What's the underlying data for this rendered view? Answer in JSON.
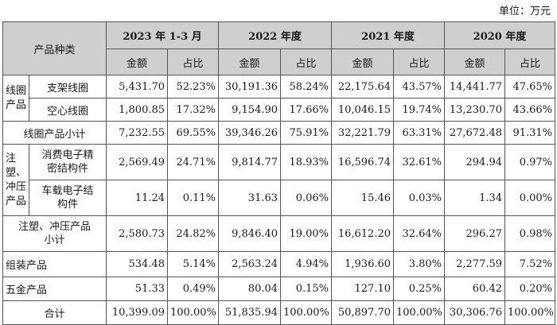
{
  "unit": "单位：万元",
  "header": {
    "category": "产品种类",
    "periods": [
      "2023 年 1-3 月",
      "2022 年度",
      "2021 年度",
      "2020 年度"
    ],
    "amount": "金额",
    "ratio": "占比"
  },
  "rows": {
    "coil_group": "线圈产品",
    "coil_group_l1": "线圈",
    "coil_group_l2": "产品",
    "bracket_coil": {
      "label": "支架线圈",
      "v": [
        "5,431.70",
        "52.23%",
        "30,191.36",
        "58.24%",
        "22,175.64",
        "43.57%",
        "14,441.77",
        "47.65%"
      ]
    },
    "air_coil": {
      "label": "空心线圈",
      "v": [
        "1,800.85",
        "17.32%",
        "9,154.90",
        "17.66%",
        "10,046.15",
        "19.74%",
        "13,230.70",
        "43.66%"
      ]
    },
    "coil_subtotal": {
      "label": "线圈产品小计",
      "v": [
        "7,232.55",
        "69.55%",
        "39,346.26",
        "75.91%",
        "32,221.79",
        "63.31%",
        "27,672.48",
        "91.31%"
      ]
    },
    "stamp_group": "注塑、冲压产品",
    "stamp_group_l1": "注",
    "stamp_group_l2": "塑、",
    "stamp_group_l3": "冲压",
    "stamp_group_l4": "产品",
    "consumer": {
      "label": "消费电子精密结构件",
      "l1": "消费电子精",
      "l2": "密结构件",
      "v": [
        "2,569.49",
        "24.71%",
        "9,814.77",
        "18.93%",
        "16,596.74",
        "32.61%",
        "294.94",
        "0.97%"
      ]
    },
    "auto": {
      "label": "车载电子结构件",
      "l1": "车载电子结",
      "l2": "构件",
      "v": [
        "11.24",
        "0.11%",
        "31.63",
        "0.06%",
        "15.46",
        "0.03%",
        "1.34",
        "0.00%"
      ]
    },
    "stamp_subtotal": {
      "label": "注塑、冲压产品小计",
      "l1": "注塑、冲压产品",
      "l2": "小计",
      "v": [
        "2,580.73",
        "24.82%",
        "9,846.40",
        "19.00%",
        "16,612.20",
        "32.64%",
        "296.27",
        "0.98%"
      ]
    },
    "assembly": {
      "label": "组装产品",
      "v": [
        "534.48",
        "5.14%",
        "2,563.24",
        "4.94%",
        "1,936.60",
        "3.80%",
        "2,277.59",
        "7.52%"
      ]
    },
    "hardware": {
      "label": "五金产品",
      "v": [
        "51.33",
        "0.49%",
        "80.04",
        "0.15%",
        "127.10",
        "0.25%",
        "60.42",
        "0.20%"
      ]
    },
    "total": {
      "label": "合计",
      "v": [
        "10,399.09",
        "100.00%",
        "51,835.94",
        "100.00%",
        "50,897.70",
        "100.00%",
        "30,306.76",
        "100.00%"
      ]
    }
  }
}
